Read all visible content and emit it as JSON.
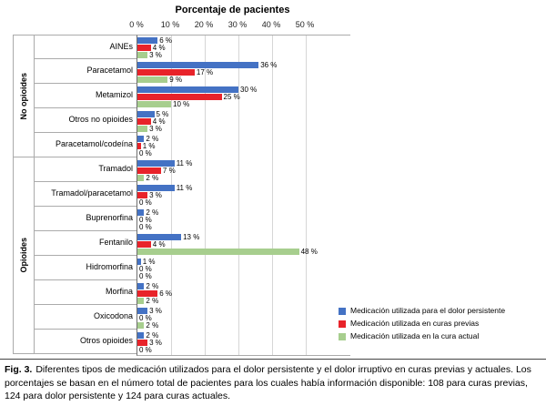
{
  "chart_data": {
    "type": "bar",
    "orientation": "horizontal",
    "title": "Porcentaje de pacientes",
    "x_ticks": [
      "0 %",
      "10 %",
      "20 %",
      "30 %",
      "40 %",
      "50 %"
    ],
    "xlim": [
      0,
      50
    ],
    "grid": true,
    "legend_position": "bottom-right",
    "value_suffix": " %",
    "groups": [
      {
        "label": "No opioides",
        "size": 5
      },
      {
        "label": "Opioides",
        "size": 8
      }
    ],
    "categories": [
      "AINEs",
      "Paracetamol",
      "Metamizol",
      "Otros no opioides",
      "Paracetamol/codeína",
      "Tramadol",
      "Tramadol/paracetamol",
      "Buprenorfina",
      "Fentanilo",
      "Hidromorfina",
      "Morfina",
      "Oxicodona",
      "Otros opioides"
    ],
    "series": [
      {
        "name": "Medicación utilizada para el dolor persistente",
        "color": "#4472c4",
        "values": [
          6,
          36,
          30,
          5,
          2,
          11,
          11,
          2,
          13,
          1,
          2,
          3,
          2
        ]
      },
      {
        "name": "Medicación utilizada en curas previas",
        "color": "#e8232a",
        "values": [
          4,
          17,
          25,
          4,
          1,
          7,
          3,
          0,
          4,
          0,
          6,
          0,
          3
        ]
      },
      {
        "name": "Medicación utilizada en la cura actual",
        "color": "#a7ce8e",
        "values": [
          3,
          9,
          10,
          3,
          0,
          2,
          0,
          0,
          48,
          0,
          2,
          2,
          0
        ]
      }
    ]
  },
  "caption": {
    "fig_label": "Fig. 3.",
    "text": "Diferentes tipos de medicación utilizados para el dolor persistente y el dolor irruptivo en curas previas y actuales. Los porcentajes se basan en el número total de pacientes para los cuales había información disponible: 108 para curas previas, 124 para dolor persistente y 124 para curas actuales."
  }
}
